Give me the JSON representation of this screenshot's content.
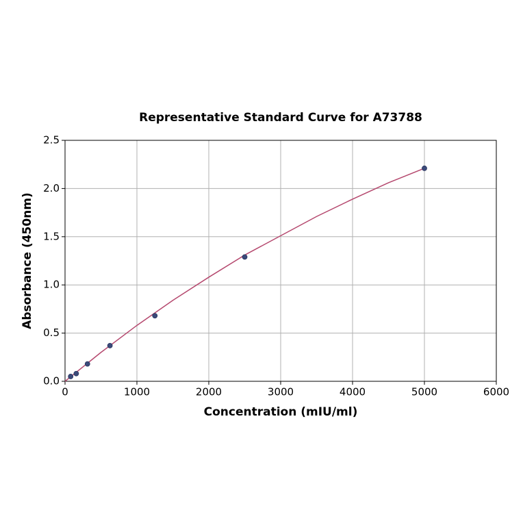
{
  "chart_data": {
    "type": "scatter",
    "title": "Representative Standard Curve for A73788",
    "x_label": "Concentration (mIU/ml)",
    "y_label": "Absorbance (450nm)",
    "xlim": [
      0,
      6000
    ],
    "xticks": [
      0,
      1000,
      2000,
      3000,
      4000,
      5000,
      6000
    ],
    "ylim": [
      0,
      2.5
    ],
    "yticks": [
      {
        "value": 0,
        "label": "0.0"
      },
      {
        "value": 0.5,
        "label": "0.5"
      },
      {
        "value": 1,
        "label": "1.0"
      },
      {
        "value": 1.5,
        "label": "1.5"
      },
      {
        "value": 2,
        "label": "2.0"
      },
      {
        "value": 2.5,
        "label": "2.5"
      }
    ],
    "grid": true,
    "series": [
      {
        "type": "line",
        "color": "#b5486e",
        "x": [
          0,
          500,
          1000,
          1500,
          2000,
          2500,
          3000,
          3500,
          4000,
          4500,
          5000
        ],
        "values": [
          0.0,
          0.3,
          0.58,
          0.84,
          1.08,
          1.31,
          1.51,
          1.71,
          1.89,
          2.06,
          2.21
        ]
      },
      {
        "type": "scatter",
        "color": "#3b4a7a",
        "x": [
          78,
          156,
          312,
          625,
          1250,
          2500,
          5000
        ],
        "values": [
          0.05,
          0.08,
          0.18,
          0.37,
          0.68,
          1.29,
          2.21
        ]
      }
    ]
  }
}
